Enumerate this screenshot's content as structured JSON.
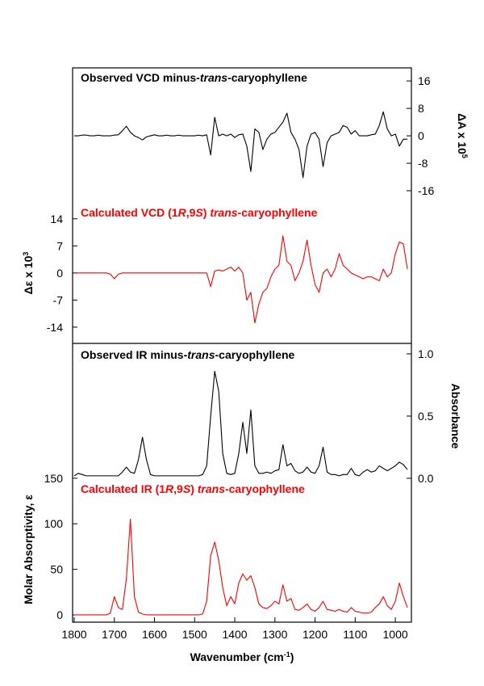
{
  "chart_data": [
    {
      "type": "line",
      "xlim": [
        1804,
        960
      ],
      "x": [
        1800,
        1790,
        1780,
        1770,
        1760,
        1750,
        1740,
        1730,
        1720,
        1710,
        1700,
        1690,
        1680,
        1670,
        1660,
        1650,
        1640,
        1630,
        1620,
        1610,
        1600,
        1590,
        1580,
        1570,
        1560,
        1550,
        1540,
        1530,
        1520,
        1510,
        1500,
        1490,
        1480,
        1470,
        1460,
        1450,
        1440,
        1430,
        1420,
        1410,
        1400,
        1390,
        1380,
        1370,
        1360,
        1350,
        1340,
        1330,
        1320,
        1310,
        1300,
        1290,
        1280,
        1270,
        1260,
        1250,
        1240,
        1230,
        1220,
        1210,
        1200,
        1190,
        1180,
        1170,
        1160,
        1150,
        1140,
        1130,
        1120,
        1110,
        1100,
        1090,
        1080,
        1070,
        1060,
        1050,
        1040,
        1030,
        1020,
        1010,
        1000,
        990,
        980,
        970
      ],
      "ylim": [
        -18.2,
        53
      ],
      "yticks": [
        14,
        7,
        0,
        -7,
        -14
      ],
      "ylabel": [
        "Δε x 10",
        "3"
      ],
      "y2lim": [
        -60.5,
        19.8
      ],
      "y2ticks": [
        16,
        8,
        0,
        -8,
        -16
      ],
      "y2label": [
        "ΔA x 10",
        "5"
      ],
      "series": [
        {
          "name": [
            "Observed VCD minus-",
            "trans",
            "-caryophyllene"
          ],
          "color": "#000000",
          "axis": "y2",
          "values": [
            0,
            0,
            0.2,
            0.2,
            0,
            0,
            0.2,
            0,
            0,
            0,
            0.2,
            0.3,
            1.5,
            2.8,
            1,
            0,
            -0.5,
            -1.2,
            -0.3,
            0,
            0.3,
            0,
            0,
            0.2,
            0,
            0,
            0.2,
            0,
            0,
            0,
            0,
            0.2,
            0,
            0.3,
            -5.6,
            5.4,
            0,
            0.5,
            0,
            0.5,
            -0.5,
            0.3,
            0.5,
            -3,
            -10.4,
            2,
            1,
            -4,
            -1,
            0.5,
            1,
            2.5,
            4,
            6.6,
            1,
            -1,
            -4,
            -12.2,
            -3,
            0.5,
            1,
            -1,
            -9,
            -2,
            0,
            0.5,
            1,
            3,
            2.5,
            0.5,
            1.5,
            0,
            0,
            0,
            0.3,
            0.5,
            3,
            7,
            2,
            0,
            0.5,
            -3,
            -1,
            -1
          ]
        },
        {
          "name": [
            "Calculated VCD (1",
            "R",
            ",9",
            "S",
            ") ",
            "trans",
            "-caryophyllene"
          ],
          "color": "#ff0000",
          "axis": "y",
          "values": [
            0,
            0,
            0,
            0,
            0,
            0,
            0,
            0,
            0,
            -0.3,
            -1.5,
            -0.3,
            0,
            0,
            0,
            0,
            0,
            0,
            0,
            0,
            0,
            0,
            0,
            0,
            0,
            0,
            0,
            0,
            0,
            0,
            0,
            0,
            0,
            0,
            -3.5,
            0.5,
            0.8,
            0.5,
            1,
            1.5,
            0.5,
            1.5,
            0,
            -7,
            -5,
            -12.9,
            -8,
            -5,
            -4,
            -1,
            1,
            2,
            9.6,
            3,
            2,
            -2,
            0,
            3,
            8.5,
            2,
            -3,
            -5,
            0,
            1,
            -1,
            1,
            5,
            2,
            1,
            0,
            -0.5,
            -1,
            -1.5,
            -1,
            -1,
            -1.5,
            -2,
            1,
            -1,
            0,
            5,
            8,
            7.5,
            1
          ]
        }
      ]
    },
    {
      "type": "line",
      "xlim": [
        1804,
        960
      ],
      "xticks": [
        1800,
        1700,
        1600,
        1500,
        1400,
        1300,
        1200,
        1100,
        1000
      ],
      "xlabel": [
        "Wavenumber (cm",
        "-1",
        ")"
      ],
      "x": [
        1800,
        1790,
        1780,
        1770,
        1760,
        1750,
        1740,
        1730,
        1720,
        1710,
        1700,
        1690,
        1680,
        1670,
        1660,
        1650,
        1640,
        1630,
        1620,
        1610,
        1600,
        1590,
        1580,
        1570,
        1560,
        1550,
        1540,
        1530,
        1520,
        1510,
        1500,
        1490,
        1480,
        1470,
        1460,
        1450,
        1440,
        1430,
        1420,
        1410,
        1400,
        1390,
        1380,
        1370,
        1360,
        1350,
        1340,
        1330,
        1320,
        1310,
        1300,
        1290,
        1280,
        1270,
        1260,
        1250,
        1240,
        1230,
        1220,
        1210,
        1200,
        1190,
        1180,
        1170,
        1160,
        1150,
        1140,
        1130,
        1120,
        1110,
        1100,
        1090,
        1080,
        1070,
        1060,
        1050,
        1040,
        1030,
        1020,
        1010,
        1000,
        990,
        980,
        970
      ],
      "ylim": [
        -8,
        298
      ],
      "yticks": [
        150,
        100,
        50,
        0
      ],
      "ylabel": [
        "Molar Absorptivity, ε"
      ],
      "y2lim": [
        -1.156,
        1.084
      ],
      "y2ticks": [
        {
          "value": 1,
          "label": "1.0"
        },
        {
          "value": 0.5,
          "label": "0.5"
        },
        {
          "value": 0,
          "label": "0.0"
        }
      ],
      "y2label": [
        "Absorbance"
      ],
      "series": [
        {
          "name": [
            "Observed IR minus-",
            "trans",
            "-caryophyllene"
          ],
          "color": "#000000",
          "axis": "y2",
          "values": [
            0.02,
            0.04,
            0.03,
            0.02,
            0.02,
            0.02,
            0.02,
            0.02,
            0.02,
            0.02,
            0.02,
            0.02,
            0.05,
            0.09,
            0.05,
            0.04,
            0.15,
            0.33,
            0.15,
            0.03,
            0.02,
            0.02,
            0.02,
            0.02,
            0.02,
            0.02,
            0.02,
            0.02,
            0.02,
            0.02,
            0.02,
            0.02,
            0.03,
            0.1,
            0.5,
            0.86,
            0.7,
            0.2,
            0.04,
            0.03,
            0.04,
            0.2,
            0.45,
            0.2,
            0.55,
            0.1,
            0.04,
            0.04,
            0.05,
            0.04,
            0.06,
            0.07,
            0.27,
            0.1,
            0.12,
            0.06,
            0.04,
            0.05,
            0.09,
            0.05,
            0.04,
            0.1,
            0.25,
            0.05,
            0.03,
            0.03,
            0.02,
            0.03,
            0.03,
            0.08,
            0.03,
            0.02,
            0.05,
            0.07,
            0.05,
            0.06,
            0.1,
            0.08,
            0.06,
            0.08,
            0.1,
            0.13,
            0.11,
            0.07
          ]
        },
        {
          "name": [
            "Calculated IR (1",
            "R",
            ",9",
            "S",
            ") ",
            "trans",
            "-caryophyllene"
          ],
          "color": "#ff0000",
          "axis": "y",
          "values": [
            0,
            0,
            0,
            0,
            0,
            0,
            0,
            0,
            0,
            2,
            20,
            8,
            6,
            40,
            105,
            20,
            3,
            1,
            0,
            0,
            0,
            0,
            0,
            0,
            0,
            0,
            0,
            0,
            0,
            0,
            0,
            0,
            1,
            15,
            65,
            80,
            60,
            30,
            10,
            20,
            12,
            35,
            45,
            38,
            43,
            30,
            12,
            8,
            7,
            10,
            15,
            12,
            33,
            15,
            18,
            6,
            5,
            8,
            12,
            6,
            4,
            8,
            15,
            6,
            5,
            4,
            6,
            4,
            3,
            8,
            4,
            3,
            2,
            2,
            3,
            8,
            12,
            20,
            10,
            6,
            15,
            35,
            20,
            8
          ]
        }
      ]
    }
  ]
}
